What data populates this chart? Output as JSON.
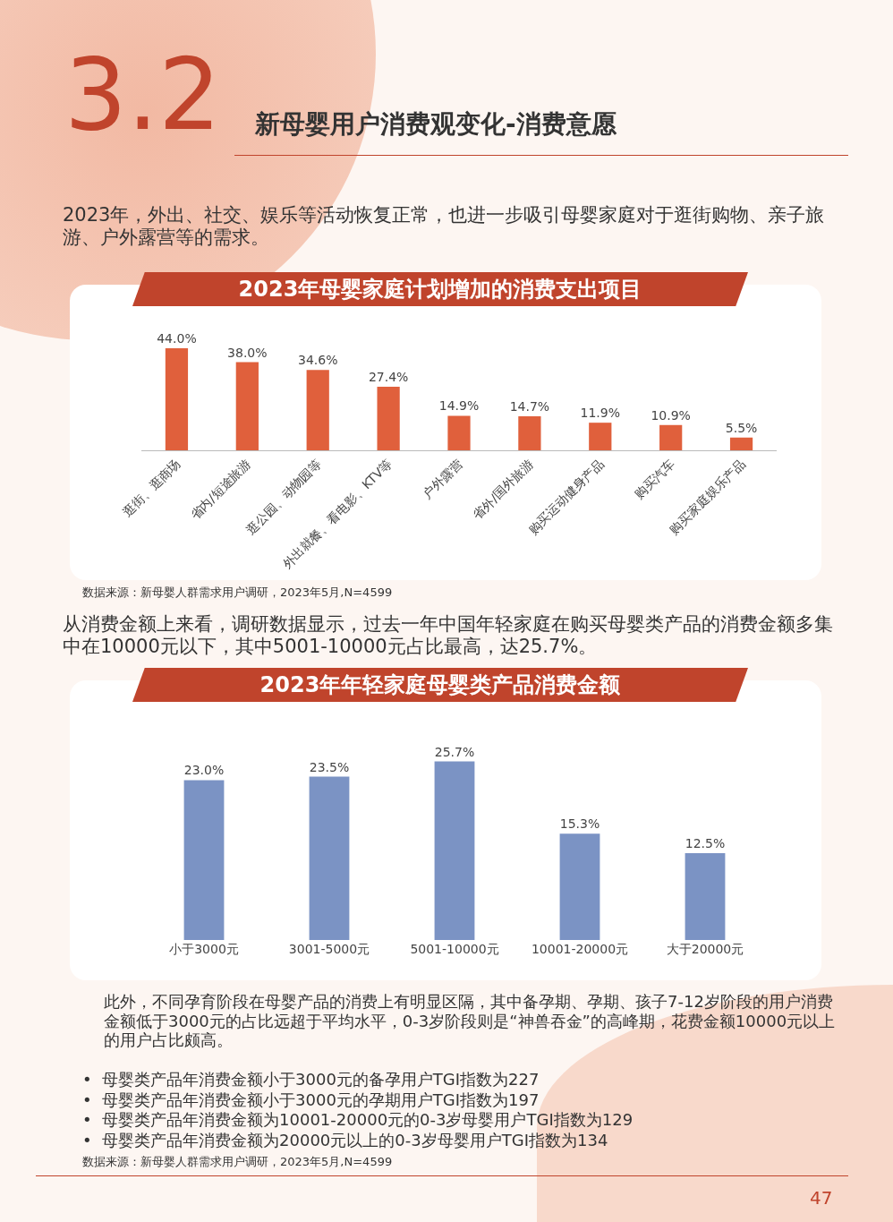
{
  "chart_data": [
    {
      "type": "bar",
      "title": "2023年母婴家庭计划增加的消费支出项目",
      "categories": [
        "逛街、逛商场",
        "省内/短途旅游",
        "逛公园、动物园等",
        "外出就餐、看电影、KTV等",
        "户外露营",
        "省外/国外旅游",
        "购买运动健身产品",
        "购买汽车",
        "购买家庭娱乐产品"
      ],
      "values": [
        44.0,
        38.0,
        34.6,
        27.4,
        14.9,
        14.7,
        11.9,
        10.9,
        5.5
      ],
      "value_labels": [
        "44.0%",
        "38.0%",
        "34.6%",
        "27.4%",
        "14.9%",
        "14.7%",
        "11.9%",
        "10.9%",
        "5.5%"
      ],
      "color": "#e0603c",
      "grid": false,
      "legend": false,
      "tick_labels": "x",
      "annotations": [
        "3.2",
        "新母婴用户消费观变化-消费意愿",
        "2023年，外出、社交、娱乐等活动恢复正常，也进一步吸引母婴家庭对于逛街购物、亲子旅游、户外露营等的需求。",
        "数据来源：新母婴人群需求用户调研，2023年5月,N=4599"
      ]
    },
    {
      "type": "bar",
      "title": "2023年年轻家庭母婴类产品消费金额",
      "categories": [
        "小于3000元",
        "3001-5000元",
        "5001-10000元",
        "10001-20000元",
        "大于20000元"
      ],
      "values": [
        23.0,
        23.5,
        25.7,
        15.3,
        12.5
      ],
      "value_labels": [
        "23.0%",
        "23.5%",
        "25.7%",
        "15.3%",
        "12.5%"
      ],
      "color": "#7b93c4",
      "grid": false,
      "legend": false,
      "tick_labels": "x",
      "annotations": [
        "从消费金额上来看，调研数据显示，过去一年中国年轻家庭在购买母婴类产品的消费金额多集中在10000元以下，其中5001-10000元占比最高，达25.7%。",
        "此外，不同孕育阶段在母婴产品的消费上有明显区隔，其中备孕期、孕期、孩子7-12岁阶段的用户消费金额低于3000元的占比远超于平均水平，0-3岁阶段则是“神兽吞金”的高峰期，花费金额10000元以上的用户占比颇高。",
        "•  母婴类产品年消费金额小于3000元的备孕用户TGI指数为227",
        "•  母婴类产品年消费金额小于3000元的孕期用户TGI指数为197",
        "•  母婴类产品年消费金额为10001-20000元的0-3岁母婴用户TGI指数为129",
        "•  母婴类产品年消费金额为20000元以上的0-3岁母婴用户TGI指数为134",
        "数据来源：新母婴人群需求用户调研，2023年5月,N=4599",
        "47"
      ]
    }
  ]
}
